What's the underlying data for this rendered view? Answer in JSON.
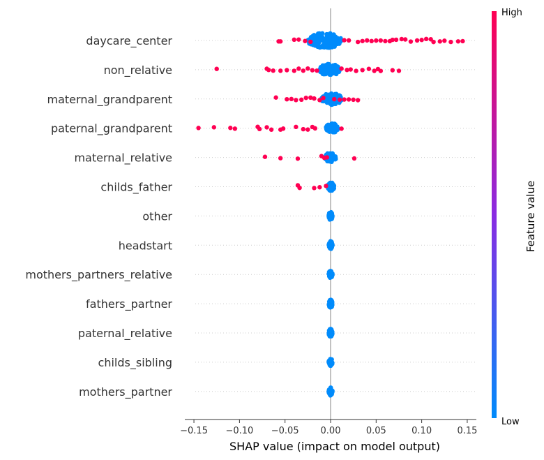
{
  "chart_data": {
    "type": "scatter",
    "subtype": "shap-beeswarm",
    "title": "",
    "xlabel": "SHAP value (impact on model output)",
    "xlim": [
      -0.16,
      0.16
    ],
    "xticks": [
      -0.15,
      -0.1,
      -0.05,
      0.0,
      0.05,
      0.1,
      0.15
    ],
    "xtick_labels": [
      "−0.15",
      "−0.10",
      "−0.05",
      "0.00",
      "0.05",
      "0.10",
      "0.15"
    ],
    "grid": false,
    "colorbar": {
      "title": "Feature value",
      "high_label": "High",
      "low_label": "Low",
      "high_color": "#ff0052",
      "mid_color": "#8a2be2",
      "low_color": "#008bfb"
    },
    "features": [
      {
        "name": "daycare_center",
        "low_spread": [
          -0.025,
          0.012
        ],
        "low_density": 0.055,
        "high_values": [
          -0.057,
          -0.055,
          -0.04,
          -0.035,
          -0.028,
          -0.022,
          0.015,
          0.02,
          0.03,
          0.035,
          0.04,
          0.045,
          0.05,
          0.055,
          0.06,
          0.065,
          0.068,
          0.072,
          0.078,
          0.082,
          0.088,
          0.095,
          0.1,
          0.105,
          0.11,
          0.113,
          0.12,
          0.125,
          0.132,
          0.14,
          0.145
        ]
      },
      {
        "name": "non_relative",
        "low_spread": [
          -0.012,
          0.01
        ],
        "low_density": 0.04,
        "high_values": [
          -0.125,
          -0.07,
          -0.068,
          -0.063,
          -0.055,
          -0.048,
          -0.04,
          -0.035,
          -0.03,
          -0.025,
          -0.02,
          -0.015,
          0.012,
          0.018,
          0.022,
          0.028,
          0.035,
          0.042,
          0.048,
          0.052,
          0.055,
          0.068,
          0.075
        ]
      },
      {
        "name": "maternal_grandparent",
        "low_spread": [
          -0.01,
          0.012
        ],
        "low_density": 0.035,
        "high_values": [
          -0.06,
          -0.048,
          -0.043,
          -0.038,
          -0.032,
          -0.027,
          -0.022,
          -0.018,
          -0.012,
          -0.008,
          0.004,
          0.01,
          0.015,
          0.02,
          0.025,
          0.03
        ]
      },
      {
        "name": "paternal_grandparent",
        "low_spread": [
          -0.005,
          0.008
        ],
        "low_density": 0.028,
        "high_values": [
          -0.145,
          -0.128,
          -0.11,
          -0.105,
          -0.08,
          -0.078,
          -0.07,
          -0.065,
          -0.055,
          -0.052,
          -0.038,
          -0.03,
          -0.025,
          -0.02,
          -0.017,
          0.012
        ]
      },
      {
        "name": "maternal_relative",
        "low_spread": [
          -0.006,
          0.006
        ],
        "low_density": 0.025,
        "high_values": [
          -0.072,
          -0.055,
          -0.036,
          -0.01,
          -0.007,
          -0.004,
          0.026
        ]
      },
      {
        "name": "childs_father",
        "low_spread": [
          -0.003,
          0.004
        ],
        "low_density": 0.02,
        "high_values": [
          -0.036,
          -0.034,
          -0.018,
          -0.012,
          -0.005
        ]
      },
      {
        "name": "other",
        "low_spread": [
          -0.002,
          0.002
        ],
        "low_density": 0.016,
        "high_values": []
      },
      {
        "name": "headstart",
        "low_spread": [
          -0.002,
          0.002
        ],
        "low_density": 0.016,
        "high_values": []
      },
      {
        "name": "mothers_partners_relative",
        "low_spread": [
          -0.002,
          0.002
        ],
        "low_density": 0.016,
        "high_values": []
      },
      {
        "name": "fathers_partner",
        "low_spread": [
          -0.002,
          0.002
        ],
        "low_density": 0.016,
        "high_values": []
      },
      {
        "name": "paternal_relative",
        "low_spread": [
          -0.002,
          0.002
        ],
        "low_density": 0.016,
        "high_values": []
      },
      {
        "name": "childs_sibling",
        "low_spread": [
          -0.002,
          0.002
        ],
        "low_density": 0.016,
        "high_values": []
      },
      {
        "name": "mothers_partner",
        "low_spread": [
          -0.002,
          0.002
        ],
        "low_density": 0.016,
        "high_values": []
      }
    ]
  }
}
